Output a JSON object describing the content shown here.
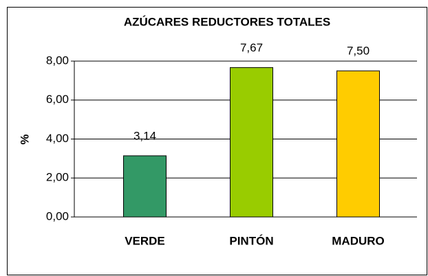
{
  "chart_data": {
    "type": "bar",
    "title": "AZÚCARES REDUCTORES TOTALES",
    "y_label": "%",
    "categories": [
      "VERDE",
      "PINTÓN",
      "MADURO"
    ],
    "values": [
      3.14,
      7.67,
      7.5
    ],
    "value_labels": [
      "3,14",
      "7,67",
      "7,50"
    ],
    "colors": [
      "#339966",
      "#99cc00",
      "#ffcc00"
    ],
    "ylim": [
      0,
      8
    ],
    "yticks": [
      {
        "value": 0,
        "label": "0,00"
      },
      {
        "value": 2,
        "label": "2,00"
      },
      {
        "value": 4,
        "label": "4,00"
      },
      {
        "value": 6,
        "label": "6,00"
      },
      {
        "value": 8,
        "label": "8,00"
      }
    ],
    "grid": true
  }
}
